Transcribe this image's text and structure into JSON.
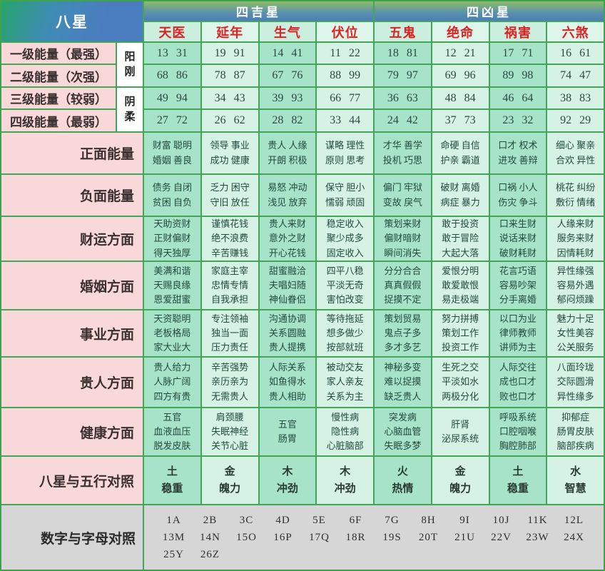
{
  "colors": {
    "grid_green": "#43a556",
    "header_green": "#8cbc68",
    "header_blue": "#4a7dc0",
    "star_red": "#dd2222",
    "label_pink": "#f8d8d8",
    "mint_dark": "#a6e3c8",
    "mint_light": "#d5f2e4",
    "bottom_gray": "#d6d6d6"
  },
  "chart_data": {
    "type": "table",
    "title": "八星",
    "column_groups": [
      {
        "label": "四吉星",
        "span": 4
      },
      {
        "label": "四凶星",
        "span": 4
      }
    ],
    "columns": [
      "天医",
      "延年",
      "生气",
      "伏位",
      "五鬼",
      "绝命",
      "祸害",
      "六煞"
    ],
    "yin_yang": {
      "yang": "阳\n刚",
      "yin": "阴\n柔"
    },
    "energy_rows": [
      {
        "label": "一级能量（最强）",
        "cells": [
          "13 31",
          "19 91",
          "14 41",
          "11 22",
          "18 81",
          "12 21",
          "17 71",
          "16 61"
        ]
      },
      {
        "label": "二级能量（次强）",
        "cells": [
          "68 86",
          "78 87",
          "67 76",
          "88 99",
          "79 97",
          "69 96",
          "89 98",
          "74 47"
        ]
      },
      {
        "label": "三级能量（较弱）",
        "cells": [
          "49 94",
          "34 43",
          "39 93",
          "66 77",
          "36 63",
          "48 84",
          "46 64",
          "38 83"
        ]
      },
      {
        "label": "四级能量（最弱）",
        "cells": [
          "27 72",
          "26 62",
          "28 82",
          "33 44",
          "24 42",
          "37 73",
          "23 32",
          "92 29"
        ]
      }
    ],
    "aspect_rows": [
      {
        "label": "正面能量",
        "cells": [
          "财富 聪明\n婚姻 善良",
          "领导 事业\n成功 健康",
          "贵人 人缘\n开朗 积极",
          "谋略 理性\n原则 思考",
          "才华 善学\n投机 巧思",
          "命硬 自信\n护亲 霸道",
          "口才 权术\n进攻 善辩",
          "细心 聚亲\n合欢 异性"
        ]
      },
      {
        "label": "负面能量",
        "cells": [
          "债务 自闭\n贫困 自负",
          "乏力 困守\n守旧 放任",
          "易怒 冲动\n浅见 放弃",
          "保守 胆小\n懦弱 顽固",
          "偏门 牢狱\n变故 戾气",
          "破财 离婚\n病症 暴力",
          "口祸 小人\n伤灾 争斗",
          "桃花 纠纷\n敷衍 情绪"
        ]
      },
      {
        "label": "财运方面",
        "cells": [
          "天助资财\n正财偏财\n得天独厚",
          "谨慎花钱\n绝不浪费\n辛苦赚钱",
          "贵人来财\n意外之财\n开心花钱",
          "稳定收入\n聚少成多\n固定收入",
          "策划来财\n偏财暗财\n瞬间消失",
          "敢于投资\n敢于冒险\n大起大落",
          "口来生财\n说话来财\n破财耗财",
          "人缘来财\n服务来财\n因情耗财"
        ]
      },
      {
        "label": "婚姻方面",
        "cells": [
          "美满和谐\n天赐良缘\n恩爱甜蜜",
          "家庭主宰\n忠情专情\n自我承担",
          "甜蜜融洽\n夫唱妇随\n神仙眷侣",
          "四平八稳\n平淡无奇\n害怕改变",
          "分分合合\n真真假假\n捉摸不定",
          "爱恨分明\n敢爱敢恨\n易走极端",
          "花言巧语\n容易吵架\n分手离婚",
          "异性缘强\n容易外遇\n郁闷烦躁"
        ]
      },
      {
        "label": "事业方面",
        "cells": [
          "天资聪明\n老板格局\n家大业大",
          "专注领袖\n独当一面\n压力责任",
          "沟通协调\n关系圆融\n贵人提携",
          "等待拖延\n想多做少\n按部就班",
          "策划贸易\n鬼点子多\n多才多艺",
          "努力拼搏\n策划工作\n投资工作",
          "以口为业\n律师教师\n讲师为主",
          "魅力十足\n女性美容\n公关服务"
        ]
      },
      {
        "label": "贵人方面",
        "cells": [
          "贵人给力\n人脉广阔\n四方有贵",
          "辛苦强势\n亲历亲为\n无需贵人",
          "人际关系\n如鱼得水\n贵人相助",
          "被动交友\n家人亲友\n关系为主",
          "神秘多变\n难以捉摸\n缺乏贵人",
          "生死之交\n平淡如水\n两极分化",
          "人际交往\n成也口才\n败也口才",
          "八面玲珑\n交际圆滑\n异性缘多"
        ]
      },
      {
        "label": "健康方面",
        "cells": [
          "五官\n血液血压\n脱发皮肤",
          "肩颈腰\n失眠神经\n关节心脏",
          "五官\n肠胃",
          "慢性病\n隐性病\n心脏脑部",
          "突发病\n心脑血管\n失眠多梦",
          "肝肾\n泌尿系统",
          "呼吸系统\n口腔咽喉\n胸腔肺部",
          "抑郁症\n肠胃皮肤\n脑部疾病"
        ]
      }
    ],
    "five_elements_row": {
      "label": "八星与五行对照",
      "cells": [
        "土\n稳重",
        "金\n魄力",
        "木\n冲劲",
        "木\n冲劲",
        "火\n热情",
        "金\n魄力",
        "土\n稳重",
        "水\n智慧"
      ]
    },
    "number_letter_row": {
      "label": "数字与字母对照",
      "items": [
        "1A",
        "2B",
        "3C",
        "4D",
        "5E",
        "6F",
        "7G",
        "8H",
        "9I",
        "10J",
        "11K",
        "12L",
        "13M",
        "14N",
        "15O",
        "16P",
        "17Q",
        "18R",
        "19S",
        "20T",
        "21U",
        "22V",
        "23W",
        "24X",
        "25Y",
        "26Z"
      ]
    }
  }
}
